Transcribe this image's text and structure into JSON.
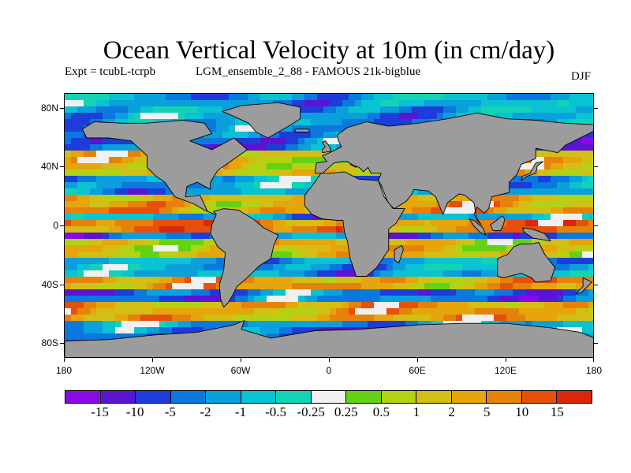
{
  "figure": {
    "title": "Ocean Vertical Velocity at 10m (in cm/day)",
    "experiment": "Expt = tcubL-tcrpb",
    "run": "LGM_ensemble_2_88 - FAMOUS 21k-bigblue",
    "season": "DJF"
  },
  "map": {
    "projection": "cylindrical equidistant",
    "lon_range": [
      -180,
      180
    ],
    "lat_range": [
      -90,
      90
    ],
    "land_color": "#9c9c9c",
    "coast_color": "#000000",
    "lat_ticks": [
      {
        "value": 80,
        "label": "80N"
      },
      {
        "value": 40,
        "label": "40N"
      },
      {
        "value": 0,
        "label": "0"
      },
      {
        "value": -40,
        "label": "40S"
      },
      {
        "value": -80,
        "label": "80S"
      }
    ],
    "lon_ticks": [
      {
        "value": -180,
        "label": "180"
      },
      {
        "value": -120,
        "label": "120W"
      },
      {
        "value": -60,
        "label": "60W"
      },
      {
        "value": 0,
        "label": "0"
      },
      {
        "value": 60,
        "label": "60E"
      },
      {
        "value": 120,
        "label": "120E"
      },
      {
        "value": 180,
        "label": "180"
      }
    ]
  },
  "colorbar": {
    "colors": [
      "#8a0ae6",
      "#5a14d2",
      "#1e3cdc",
      "#0a78dc",
      "#0aa0dc",
      "#0ac3d2",
      "#14d2b4",
      "#f0f0f0",
      "#64d214",
      "#b4d214",
      "#d2be14",
      "#e6a50a",
      "#e6820a",
      "#e6500a",
      "#dc280a"
    ],
    "labels": [
      "-15",
      "-10",
      "-5",
      "-2",
      "-1",
      "-0.5",
      "-0.25",
      "0.25",
      "0.5",
      "1",
      "2",
      "5",
      "10",
      "15"
    ]
  }
}
